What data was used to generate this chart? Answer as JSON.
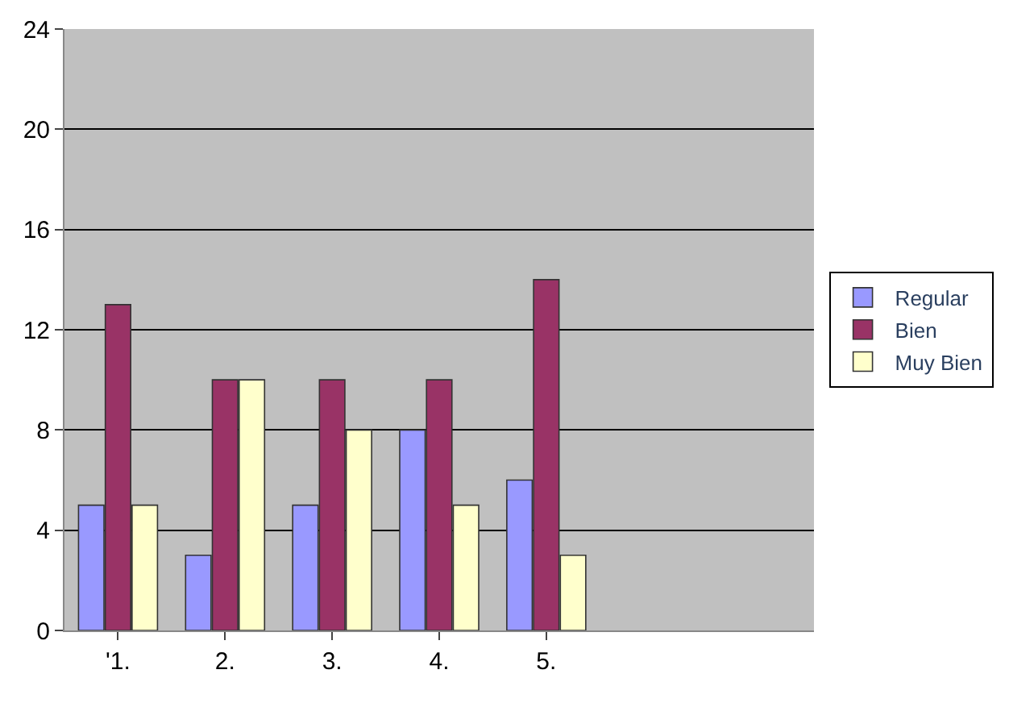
{
  "chart_data": {
    "type": "bar",
    "categories": [
      "'1.",
      "2.",
      "3.",
      "4.",
      "5.",
      null,
      null
    ],
    "series": [
      {
        "name": "Regular",
        "color": "#9999ff",
        "values": [
          5,
          3,
          5,
          8,
          6,
          null,
          null
        ]
      },
      {
        "name": "Bien",
        "color": "#993366",
        "values": [
          13,
          10,
          10,
          10,
          14,
          null,
          null
        ]
      },
      {
        "name": "Muy Bien",
        "color": "#ffffcc",
        "values": [
          5,
          10,
          8,
          5,
          3,
          null,
          null
        ]
      }
    ],
    "ylim": [
      0,
      24
    ],
    "yticks": [
      0,
      4,
      8,
      12,
      16,
      20,
      24
    ],
    "grid": "y",
    "legend": "right"
  }
}
